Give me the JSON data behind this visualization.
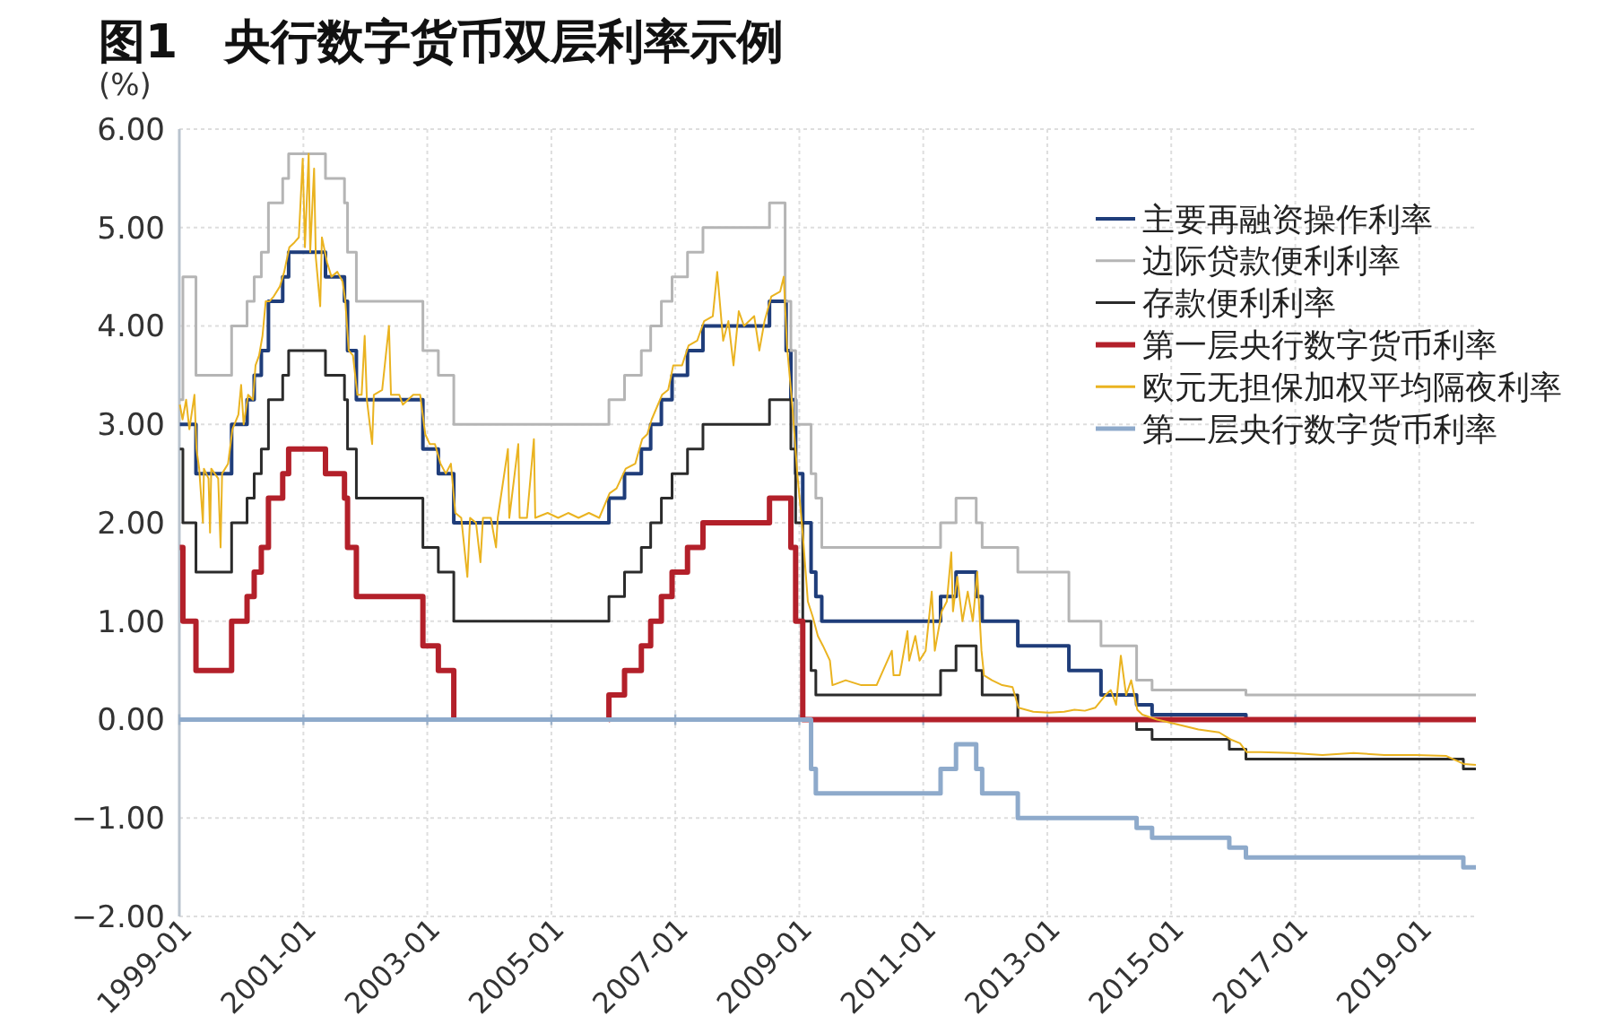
{
  "chart_data": {
    "type": "step",
    "title": "图1　央行数字货币双层利率示例",
    "ylabel": "(%)",
    "xlim": [
      "1999-01-01",
      "2019-12-01"
    ],
    "xticks": [
      "1999-01",
      "2001-01",
      "2003-01",
      "2005-01",
      "2007-01",
      "2009-01",
      "2011-01",
      "2013-01",
      "2015-01",
      "2017-01",
      "2019-01"
    ],
    "ylim": [
      -2,
      6
    ],
    "yticks": [
      {
        "value": 6,
        "label": "6.00"
      },
      {
        "value": 5,
        "label": "5.00"
      },
      {
        "value": 4,
        "label": "4.00"
      },
      {
        "value": 3,
        "label": "3.00"
      },
      {
        "value": 2,
        "label": "2.00"
      },
      {
        "value": 1,
        "label": "1.00"
      },
      {
        "value": 0,
        "label": "0.00"
      },
      {
        "value": -1,
        "label": "−1.00"
      },
      {
        "value": -2,
        "label": "−2.00"
      }
    ],
    "grid": true,
    "legend": "top right",
    "series": [
      {
        "name": "主要再融资操作利率",
        "color": "#1f3d7a",
        "x": [
          "1999-01-04",
          "1999-04-09",
          "1999-11-05",
          "2000-02-04",
          "2000-03-17",
          "2000-04-28",
          "2000-06-09",
          "2000-09-01",
          "2000-10-06",
          "2001-05-11",
          "2001-08-31",
          "2001-09-18",
          "2001-11-09",
          "2002-12-06",
          "2003-03-07",
          "2003-06-06",
          "2005-12-06",
          "2006-03-08",
          "2006-06-15",
          "2006-08-09",
          "2006-10-11",
          "2006-12-13",
          "2007-03-14",
          "2007-06-13",
          "2008-07-09",
          "2008-10-15",
          "2008-11-12",
          "2008-12-10",
          "2009-01-21",
          "2009-03-11",
          "2009-04-08",
          "2009-05-13",
          "2011-04-13",
          "2011-07-13",
          "2011-11-09",
          "2011-12-14",
          "2012-07-11",
          "2013-05-08",
          "2013-11-13",
          "2014-06-11",
          "2014-09-10",
          "2016-03-16"
        ],
        "values": [
          3.0,
          2.5,
          3.0,
          3.25,
          3.5,
          3.75,
          4.25,
          4.5,
          4.75,
          4.5,
          4.25,
          3.75,
          3.25,
          2.75,
          2.5,
          2.0,
          2.25,
          2.5,
          2.75,
          3.0,
          3.25,
          3.5,
          3.75,
          4.0,
          4.25,
          3.75,
          3.25,
          2.5,
          2.0,
          1.5,
          1.25,
          1.0,
          1.25,
          1.5,
          1.25,
          1.0,
          0.75,
          0.5,
          0.25,
          0.15,
          0.05,
          0
        ]
      },
      {
        "name": "边际贷款便利利率",
        "color": "#b5b5b5",
        "x": [
          "1999-01-04",
          "1999-01-22",
          "1999-04-09",
          "1999-11-05",
          "2000-02-04",
          "2000-03-17",
          "2000-04-28",
          "2000-06-09",
          "2000-09-01",
          "2000-10-06",
          "2001-05-11",
          "2001-08-31",
          "2001-09-18",
          "2001-11-09",
          "2002-12-06",
          "2003-03-07",
          "2003-06-06",
          "2005-12-06",
          "2006-03-08",
          "2006-06-15",
          "2006-08-09",
          "2006-10-11",
          "2006-12-13",
          "2007-03-14",
          "2007-06-13",
          "2008-07-09",
          "2008-10-09",
          "2008-11-12",
          "2008-12-10",
          "2009-03-11",
          "2009-04-08",
          "2009-05-13",
          "2011-04-13",
          "2011-07-13",
          "2011-11-09",
          "2011-12-14",
          "2012-07-11",
          "2013-05-08",
          "2013-11-13",
          "2014-06-11",
          "2014-09-10",
          "2016-03-16",
          "2019-12-01"
        ],
        "values": [
          3.25,
          4.5,
          3.5,
          4.0,
          4.25,
          4.5,
          4.75,
          5.25,
          5.5,
          5.75,
          5.5,
          5.25,
          4.75,
          4.25,
          3.75,
          3.5,
          3.0,
          3.25,
          3.5,
          3.75,
          4.0,
          4.25,
          4.5,
          4.75,
          5.0,
          5.25,
          4.25,
          3.75,
          3.0,
          2.5,
          2.25,
          1.75,
          2.0,
          2.25,
          2.0,
          1.75,
          1.5,
          1.0,
          0.75,
          0.4,
          0.3,
          0.25,
          0.25
        ]
      },
      {
        "name": "存款便利利率",
        "color": "#2b2b2b",
        "x": [
          "1999-01-04",
          "1999-01-22",
          "1999-04-09",
          "1999-11-05",
          "2000-02-04",
          "2000-03-17",
          "2000-04-28",
          "2000-06-09",
          "2000-09-01",
          "2000-10-06",
          "2001-05-11",
          "2001-08-31",
          "2001-09-18",
          "2001-11-09",
          "2002-12-06",
          "2003-03-07",
          "2003-06-06",
          "2005-12-06",
          "2006-03-08",
          "2006-06-15",
          "2006-08-09",
          "2006-10-11",
          "2006-12-13",
          "2007-03-14",
          "2007-06-13",
          "2008-07-09",
          "2008-11-12",
          "2008-12-10",
          "2009-01-21",
          "2009-03-11",
          "2009-04-08",
          "2011-04-13",
          "2011-07-13",
          "2011-11-09",
          "2011-12-14",
          "2012-07-11",
          "2012-07-12",
          "2014-06-10",
          "2014-06-11",
          "2014-09-10",
          "2015-12-09",
          "2016-03-16",
          "2019-09-18",
          "2019-12-01"
        ],
        "values": [
          2.75,
          2.0,
          1.5,
          2.0,
          2.25,
          2.5,
          2.75,
          3.25,
          3.5,
          3.75,
          3.5,
          3.25,
          2.75,
          2.25,
          1.75,
          1.5,
          1.0,
          1.25,
          1.5,
          1.75,
          2.0,
          2.25,
          2.5,
          2.75,
          3.0,
          3.25,
          2.75,
          2.0,
          1.0,
          0.5,
          0.25,
          0.5,
          0.75,
          0.5,
          0.25,
          0,
          null,
          0,
          -0.1,
          -0.2,
          -0.3,
          -0.4,
          -0.5,
          -0.5
        ]
      },
      {
        "name": "第一层央行数字货币利率",
        "color": "#b3202a",
        "x": [
          "1999-01-04",
          "1999-01-22",
          "1999-04-09",
          "1999-11-05",
          "2000-02-04",
          "2000-03-17",
          "2000-04-28",
          "2000-06-09",
          "2000-09-01",
          "2000-10-06",
          "2001-05-11",
          "2001-08-31",
          "2001-09-18",
          "2001-11-09",
          "2002-12-06",
          "2003-03-07",
          "2003-06-06",
          "2003-06-07",
          "2005-12-05",
          "2005-12-06",
          "2006-03-08",
          "2006-06-15",
          "2006-08-09",
          "2006-10-11",
          "2006-12-13",
          "2007-03-14",
          "2007-06-13",
          "2008-07-09",
          "2008-11-12",
          "2008-12-10",
          "2009-01-21",
          "2019-12-01"
        ],
        "values": [
          1.75,
          1.0,
          0.5,
          1.0,
          1.25,
          1.5,
          1.75,
          2.25,
          2.5,
          2.75,
          2.5,
          2.25,
          1.75,
          1.25,
          0.75,
          0.5,
          0,
          null,
          0,
          0.25,
          0.5,
          0.75,
          1.0,
          1.25,
          1.5,
          1.75,
          2.0,
          2.25,
          1.75,
          1.0,
          0,
          0
        ]
      },
      {
        "name": "欧元无担保加权平均隔夜利率",
        "color": "#eab320",
        "type": "line",
        "x": [
          "1999-01-04",
          "1999-01-20",
          "1999-02-10",
          "1999-03-01",
          "1999-03-31",
          "1999-04-12",
          "1999-04-28",
          "1999-05-20",
          "1999-05-26",
          "1999-06-22",
          "1999-07-01",
          "1999-07-08",
          "1999-08-18",
          "1999-09-01",
          "1999-09-10",
          "1999-10-15",
          "1999-11-10",
          "1999-12-15",
          "1999-12-31",
          "2000-01-15",
          "2000-02-10",
          "2000-03-10",
          "2000-03-25",
          "2000-04-15",
          "2000-05-05",
          "2000-05-24",
          "2000-06-15",
          "2000-07-10",
          "2000-08-15",
          "2000-09-10",
          "2000-10-10",
          "2000-11-10",
          "2000-12-05",
          "2000-12-28",
          "2001-01-10",
          "2001-02-01",
          "2001-02-10",
          "2001-03-05",
          "2001-03-15",
          "2001-04-10",
          "2001-04-20",
          "2001-05-20",
          "2001-06-15",
          "2001-07-20",
          "2001-08-20",
          "2001-09-05",
          "2001-09-25",
          "2001-10-20",
          "2001-11-15",
          "2001-12-10",
          "2001-12-28",
          "2002-01-10",
          "2002-02-10",
          "2002-02-20",
          "2002-04-10",
          "2002-05-20",
          "2002-06-01",
          "2002-07-20",
          "2002-08-10",
          "2002-10-10",
          "2002-11-20",
          "2002-12-20",
          "2003-01-15",
          "2003-02-15",
          "2003-03-20",
          "2003-04-20",
          "2003-05-20",
          "2003-06-15",
          "2003-07-20",
          "2003-08-25",
          "2003-09-10",
          "2003-10-15",
          "2003-11-10",
          "2003-11-25",
          "2004-01-10",
          "2004-02-10",
          "2004-02-20",
          "2004-04-20",
          "2004-04-28",
          "2004-06-20",
          "2004-06-28",
          "2004-08-10",
          "2004-09-20",
          "2004-09-28",
          "2004-12-10",
          "2005-02-10",
          "2005-04-10",
          "2005-06-10",
          "2005-08-10",
          "2005-10-10",
          "2005-12-10",
          "2006-01-20",
          "2006-03-15",
          "2006-05-10",
          "2006-06-20",
          "2006-07-20",
          "2006-08-15",
          "2006-10-15",
          "2006-11-20",
          "2006-12-20",
          "2007-02-10",
          "2007-03-20",
          "2007-05-10",
          "2007-06-20",
          "2007-08-10",
          "2007-09-05",
          "2007-10-10",
          "2007-11-10",
          "2007-12-10",
          "2008-01-10",
          "2008-02-10",
          "2008-04-10",
          "2008-05-10",
          "2008-06-10",
          "2008-07-20",
          "2008-09-10",
          "2008-10-01",
          "2008-10-20",
          "2008-11-20",
          "2008-12-20",
          "2009-01-05",
          "2009-01-25",
          "2009-02-20",
          "2009-03-20",
          "2009-04-20",
          "2009-05-20",
          "2009-06-30",
          "2009-07-15",
          "2009-10-01",
          "2010-01-01",
          "2010-04-01",
          "2010-06-30",
          "2010-07-10",
          "2010-08-15",
          "2010-09-30",
          "2010-10-10",
          "2010-11-15",
          "2010-12-10",
          "2011-01-15",
          "2011-02-20",
          "2011-03-10",
          "2011-04-20",
          "2011-05-20",
          "2011-06-15",
          "2011-06-25",
          "2011-07-20",
          "2011-08-20",
          "2011-09-20",
          "2011-10-20",
          "2011-11-15",
          "2011-12-10",
          "2011-12-25",
          "2012-02-10",
          "2012-04-10",
          "2012-06-10",
          "2012-07-15",
          "2012-10-10",
          "2013-01-10",
          "2013-04-10",
          "2013-06-10",
          "2013-08-10",
          "2013-10-10",
          "2013-12-10",
          "2014-01-10",
          "2014-02-10",
          "2014-03-10",
          "2014-04-10",
          "2014-05-10",
          "2014-06-15",
          "2014-07-15",
          "2014-10-10",
          "2015-02-10",
          "2015-06-10",
          "2015-10-10",
          "2015-12-15",
          "2016-02-10",
          "2016-03-20",
          "2016-06-10",
          "2016-12-10",
          "2017-06-10",
          "2017-12-10",
          "2018-06-10",
          "2018-12-10",
          "2019-06-10",
          "2019-09-20",
          "2019-12-01"
        ],
        "values": [
          3.2,
          3.05,
          3.25,
          2.95,
          3.3,
          2.75,
          2.55,
          2.0,
          2.55,
          2.45,
          1.9,
          2.55,
          2.45,
          1.75,
          2.5,
          2.6,
          2.95,
          3.1,
          3.4,
          3.0,
          3.3,
          3.25,
          3.6,
          3.7,
          3.9,
          4.25,
          4.25,
          4.3,
          4.4,
          4.55,
          4.8,
          4.85,
          4.9,
          5.7,
          4.8,
          5.75,
          4.75,
          5.6,
          4.7,
          4.2,
          4.9,
          4.65,
          4.5,
          4.55,
          4.45,
          4.25,
          3.75,
          3.7,
          3.3,
          3.3,
          3.9,
          3.25,
          2.8,
          3.3,
          3.35,
          4.0,
          3.3,
          3.3,
          3.2,
          3.3,
          3.3,
          2.9,
          2.8,
          2.8,
          2.6,
          2.5,
          2.6,
          2.1,
          2.05,
          1.45,
          2.05,
          2.0,
          1.6,
          2.05,
          2.05,
          1.75,
          2.05,
          2.75,
          2.05,
          2.8,
          2.05,
          2.05,
          2.85,
          2.05,
          2.1,
          2.05,
          2.1,
          2.05,
          2.1,
          2.05,
          2.3,
          2.35,
          2.55,
          2.6,
          2.85,
          2.9,
          3.05,
          3.3,
          3.35,
          3.6,
          3.6,
          3.8,
          3.85,
          4.05,
          4.1,
          4.55,
          3.85,
          4.05,
          3.6,
          4.15,
          4.0,
          4.1,
          3.75,
          4.05,
          4.3,
          4.35,
          4.5,
          3.8,
          3.2,
          2.5,
          2.2,
          1.8,
          1.2,
          1.05,
          0.85,
          0.75,
          0.6,
          0.35,
          0.4,
          0.35,
          0.35,
          0.7,
          0.45,
          0.45,
          0.9,
          0.6,
          0.85,
          0.6,
          0.7,
          1.3,
          0.7,
          1.1,
          1.2,
          1.7,
          1.1,
          1.45,
          1.0,
          1.3,
          1.0,
          1.5,
          0.7,
          0.45,
          0.4,
          0.35,
          0.33,
          0.12,
          0.08,
          0.07,
          0.08,
          0.1,
          0.09,
          0.12,
          0.25,
          0.3,
          0.15,
          0.65,
          0.25,
          0.4,
          0.1,
          0.05,
          0.0,
          -0.05,
          -0.1,
          -0.13,
          -0.2,
          -0.24,
          -0.33,
          -0.33,
          -0.34,
          -0.36,
          -0.34,
          -0.36,
          -0.36,
          -0.37,
          -0.45,
          -0.46
        ]
      },
      {
        "name": "第二层央行数字货币利率",
        "color": "#8eaacb",
        "x": [
          "1999-01-01",
          "2009-03-11",
          "2009-04-08",
          "2011-04-13",
          "2011-07-13",
          "2011-11-09",
          "2011-12-14",
          "2012-07-11",
          "2014-06-11",
          "2014-09-10",
          "2015-12-09",
          "2016-03-16",
          "2019-09-18",
          "2019-12-01"
        ],
        "values": [
          0,
          -0.5,
          -0.75,
          -0.5,
          -0.25,
          -0.5,
          -0.75,
          -1.0,
          -1.1,
          -1.2,
          -1.3,
          -1.4,
          -1.5,
          -1.5
        ]
      }
    ]
  }
}
